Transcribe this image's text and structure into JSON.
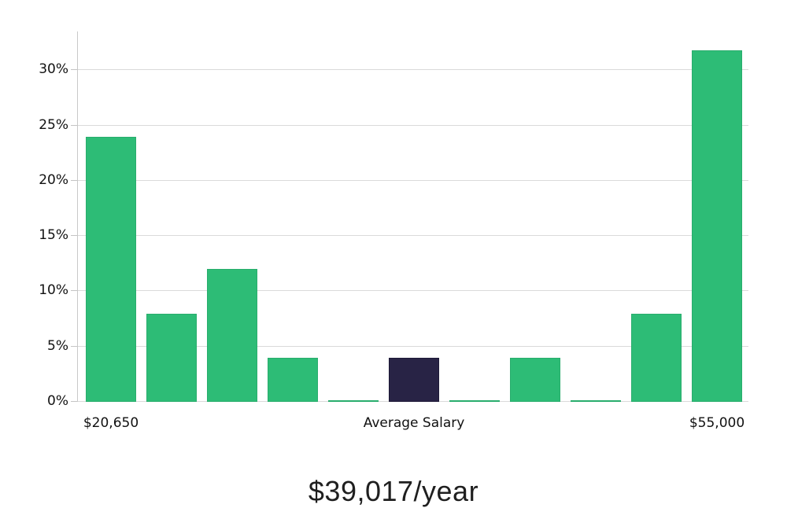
{
  "chart_data": {
    "type": "bar",
    "title": "$39,017/year",
    "title_position": "bottom",
    "values": [
      24,
      8,
      12,
      4,
      0.1,
      4,
      0.1,
      4,
      0.1,
      8,
      31.8
    ],
    "highlight_index": 5,
    "x_axis_labels": [
      {
        "bar_index": 0,
        "label": "$20,650"
      },
      {
        "bar_index": 5,
        "label": "Average Salary"
      },
      {
        "bar_index": 10,
        "label": "$55,000"
      }
    ],
    "ytick_values": [
      0,
      5,
      10,
      15,
      20,
      25,
      30
    ],
    "ytick_labels": [
      "0%",
      "5%",
      "10%",
      "15%",
      "20%",
      "25%",
      "30%"
    ],
    "ylabel": "",
    "xlabel": "",
    "ylim": [
      0,
      33.5
    ],
    "grid": true,
    "legend": false,
    "colors": {
      "bar": "#2dbc76",
      "bar_border": "#29ad6d",
      "highlight_bar": "#282345",
      "highlight_border": "#1d1937",
      "gridline": "#dadada",
      "axis_line": "#c9c9c9",
      "label_text": "#111111",
      "title_text": "#1f1f1f",
      "background": "#ffffff"
    }
  }
}
